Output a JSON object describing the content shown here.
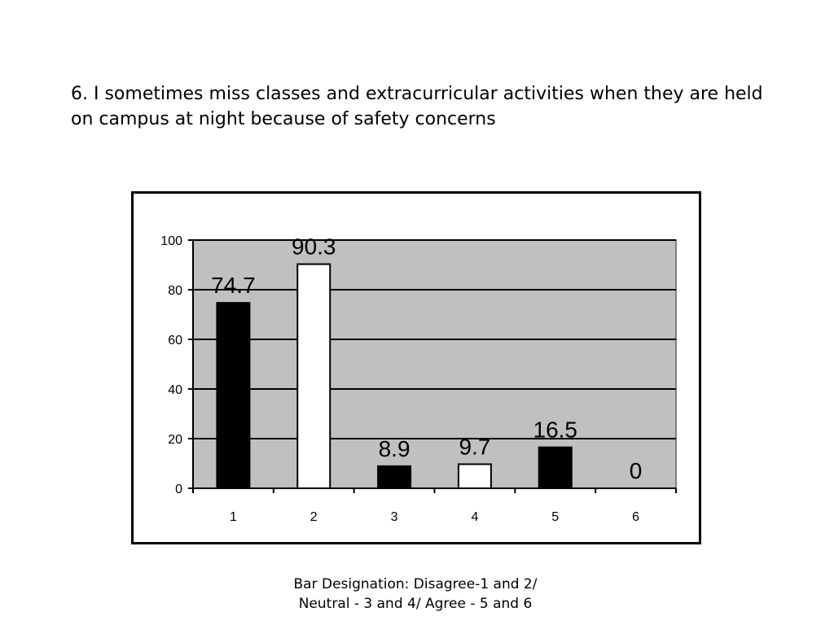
{
  "question": {
    "title": "6. I sometimes miss classes and extracurricular activities when they are held on campus at night because of safety concerns"
  },
  "caption": {
    "text": "Bar Designation: Disagree-1 and 2/ Neutral - 3 and 4/ Agree - 5 and 6"
  },
  "chart_data": {
    "type": "bar",
    "categories": [
      "1",
      "2",
      "3",
      "4",
      "5",
      "6"
    ],
    "values": [
      74.7,
      90.3,
      8.9,
      9.7,
      16.5,
      0
    ],
    "data_labels": [
      "74.7",
      "90.3",
      "8.9",
      "9.7",
      "16.5",
      "0"
    ],
    "bar_colors": [
      "#000000",
      "#ffffff",
      "#000000",
      "#ffffff",
      "#000000",
      "#ffffff"
    ],
    "plot_background": "#c0c0c0",
    "ylim": [
      0,
      100
    ],
    "yticks": [
      0,
      20,
      40,
      60,
      80,
      100
    ],
    "title": "",
    "xlabel": "",
    "ylabel": "",
    "grid": true,
    "legend": false
  }
}
